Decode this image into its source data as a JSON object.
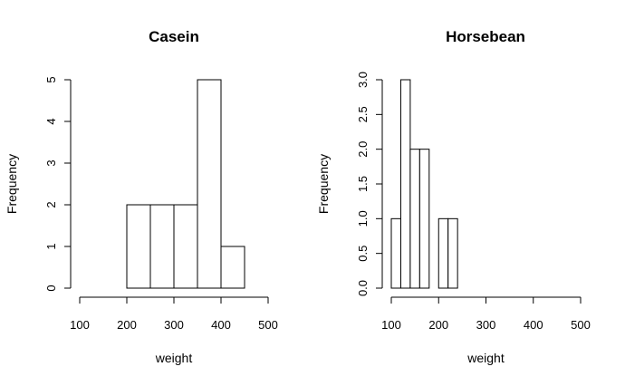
{
  "chart_data": [
    {
      "type": "bar",
      "title": "Casein",
      "xlabel": "weight",
      "ylabel": "Frequency",
      "xlim": [
        100,
        500
      ],
      "ylim": [
        0,
        5
      ],
      "x_ticks": [
        "100",
        "200",
        "300",
        "400",
        "500"
      ],
      "y_ticks": [
        "0",
        "1",
        "2",
        "3",
        "4",
        "5"
      ],
      "bins": [
        [
          200,
          250
        ],
        [
          250,
          300
        ],
        [
          300,
          350
        ],
        [
          350,
          400
        ],
        [
          400,
          450
        ]
      ],
      "values": [
        2,
        2,
        2,
        5,
        1
      ]
    },
    {
      "type": "bar",
      "title": "Horsebean",
      "xlabel": "weight",
      "ylabel": "Frequency",
      "xlim": [
        100,
        500
      ],
      "ylim": [
        0,
        3
      ],
      "x_ticks": [
        "100",
        "200",
        "300",
        "400",
        "500"
      ],
      "y_ticks": [
        "0.0",
        "0.5",
        "1.0",
        "1.5",
        "2.0",
        "2.5",
        "3.0"
      ],
      "bins": [
        [
          100,
          120
        ],
        [
          120,
          140
        ],
        [
          140,
          160
        ],
        [
          160,
          180
        ],
        [
          180,
          200
        ],
        [
          200,
          220
        ],
        [
          220,
          240
        ]
      ],
      "values": [
        1,
        3,
        2,
        2,
        0,
        1,
        1
      ]
    }
  ]
}
